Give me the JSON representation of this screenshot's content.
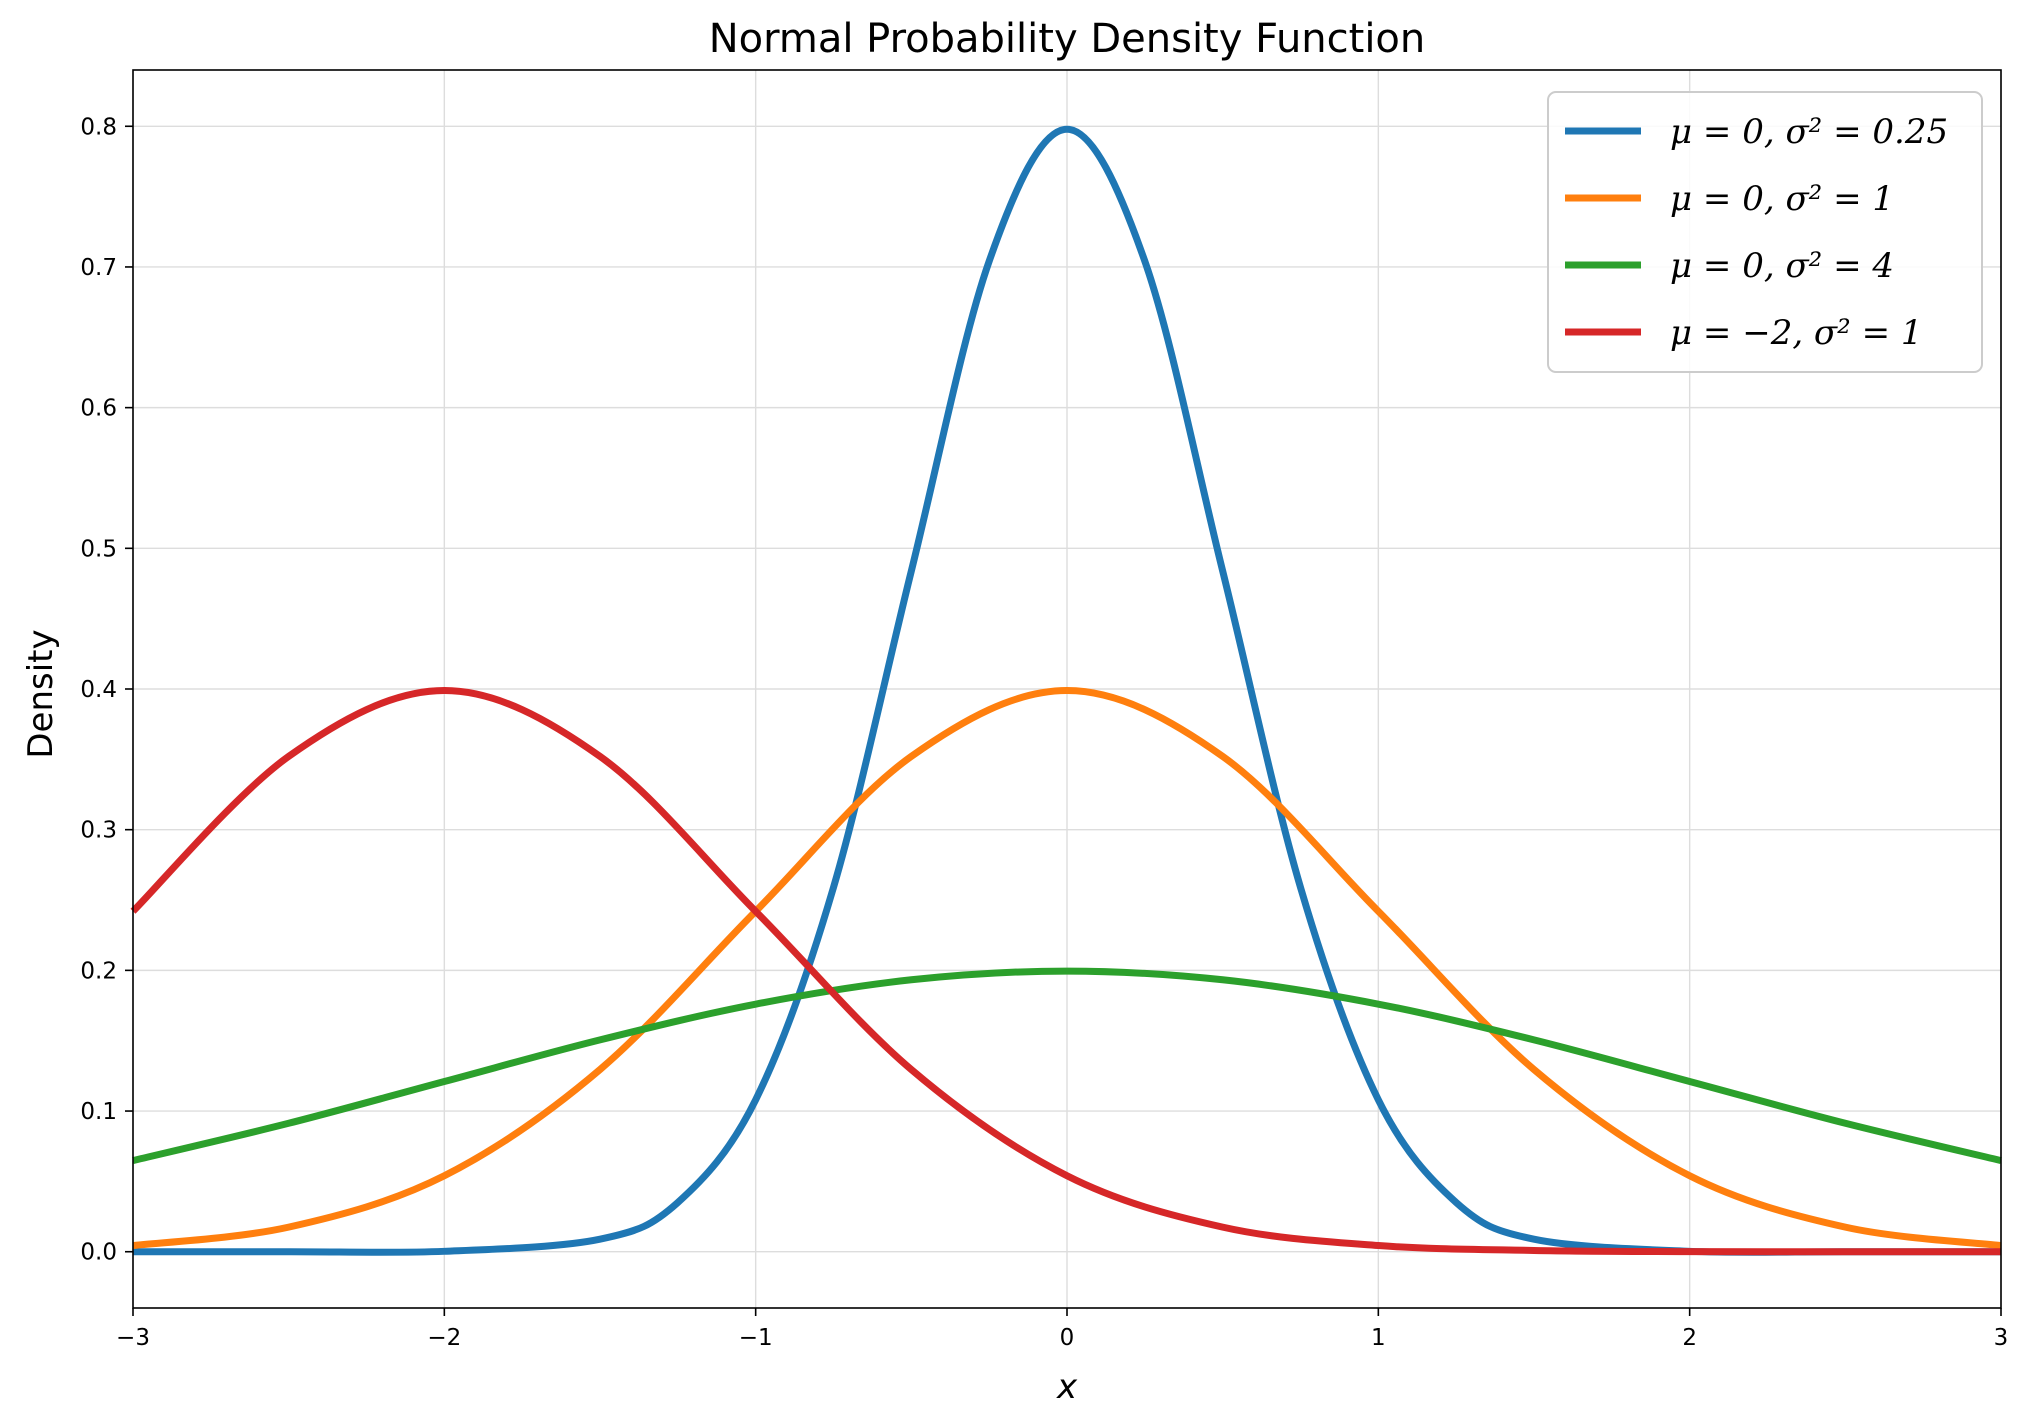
{
  "chart_data": {
    "type": "line",
    "title": "Normal Probability Density Function",
    "xlabel": "x",
    "ylabel": "Density",
    "xlim": [
      -3,
      3
    ],
    "ylim": [
      -0.04,
      0.84
    ],
    "x_ticks": [
      -3,
      -2,
      -1,
      0,
      1,
      2,
      3
    ],
    "x_tick_labels": [
      "−3",
      "−2",
      "−1",
      "0",
      "1",
      "2",
      "3"
    ],
    "y_ticks": [
      0.0,
      0.1,
      0.2,
      0.3,
      0.4,
      0.5,
      0.6,
      0.7,
      0.8
    ],
    "y_tick_labels": [
      "0.0",
      "0.1",
      "0.2",
      "0.3",
      "0.4",
      "0.5",
      "0.6",
      "0.7",
      "0.8"
    ],
    "grid": true,
    "legend_position": "top-right",
    "series": [
      {
        "name": "μ = 0, σ² = 0.25",
        "color": "#1f77b4",
        "x": [
          -3.0,
          -2.5,
          -2.0,
          -1.5,
          -1.25,
          -1.0,
          -0.75,
          -0.5,
          -0.25,
          0.0,
          0.25,
          0.5,
          0.75,
          1.0,
          1.25,
          1.5,
          2.0,
          2.5,
          3.0
        ],
        "y": [
          0.0,
          0.0,
          0.0003,
          0.0089,
          0.035,
          0.108,
          0.259,
          0.4839,
          0.7041,
          0.7979,
          0.7041,
          0.4839,
          0.259,
          0.108,
          0.035,
          0.0089,
          0.0003,
          0.0,
          0.0
        ]
      },
      {
        "name": "μ = 0, σ² = 1",
        "color": "#ff7f0e",
        "x": [
          -3.0,
          -2.5,
          -2.0,
          -1.5,
          -1.0,
          -0.5,
          0.0,
          0.5,
          1.0,
          1.5,
          2.0,
          2.5,
          3.0
        ],
        "y": [
          0.0044,
          0.0175,
          0.054,
          0.1295,
          0.242,
          0.3521,
          0.3989,
          0.3521,
          0.242,
          0.1295,
          0.054,
          0.0175,
          0.0044
        ]
      },
      {
        "name": "μ = 0, σ² = 4",
        "color": "#2ca02c",
        "x": [
          -3.0,
          -2.5,
          -2.0,
          -1.5,
          -1.0,
          -0.5,
          0.0,
          0.5,
          1.0,
          1.5,
          2.0,
          2.5,
          3.0
        ],
        "y": [
          0.0648,
          0.0913,
          0.121,
          0.1506,
          0.176,
          0.1933,
          0.1995,
          0.1933,
          0.176,
          0.1506,
          0.121,
          0.0913,
          0.0648
        ]
      },
      {
        "name": "μ = −2, σ² = 1",
        "color": "#d62728",
        "x": [
          -3.0,
          -2.5,
          -2.0,
          -1.5,
          -1.0,
          -0.5,
          0.0,
          0.5,
          1.0,
          1.5,
          2.0,
          2.5,
          3.0
        ],
        "y": [
          0.242,
          0.3521,
          0.3989,
          0.3521,
          0.242,
          0.1295,
          0.054,
          0.0175,
          0.0044,
          0.0009,
          0.0001,
          0.0,
          0.0
        ]
      }
    ]
  }
}
